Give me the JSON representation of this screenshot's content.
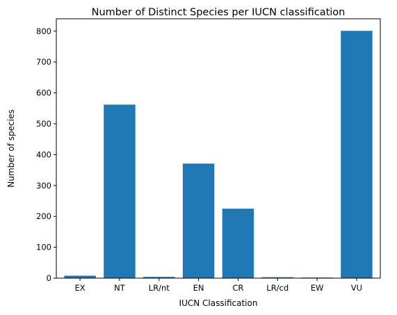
{
  "chart_data": {
    "type": "bar",
    "title": "Number of Distinct Species per IUCN classification",
    "xlabel": "IUCN Classification",
    "ylabel": "Number of species",
    "categories": [
      "EX",
      "NT",
      "LR/nt",
      "EN",
      "CR",
      "LR/cd",
      "EW",
      "VU"
    ],
    "values": [
      8,
      562,
      4,
      371,
      225,
      3,
      2,
      801
    ],
    "ylim": [
      0,
      840
    ],
    "yticks": [
      0,
      100,
      200,
      300,
      400,
      500,
      600,
      700,
      800
    ],
    "grid": false,
    "legend": "none",
    "bar_color": "#1f77b4"
  }
}
